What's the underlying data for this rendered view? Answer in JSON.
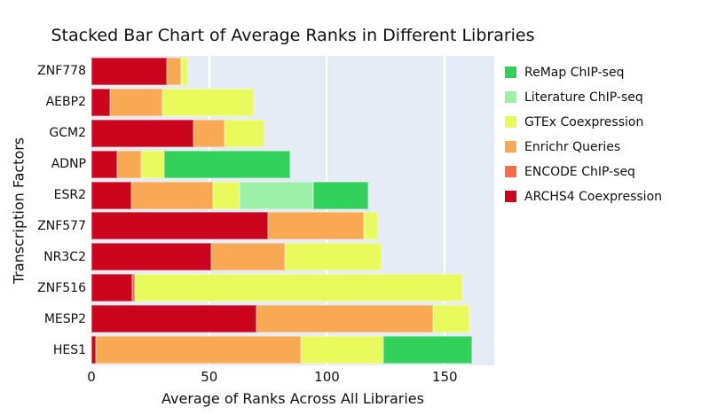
{
  "title": "Stacked Bar Chart of Average Ranks in Different Libraries",
  "x_axis": {
    "title": "Average of Ranks Across All Libraries",
    "tick_labels": [
      "0",
      "50",
      "100",
      "150"
    ],
    "tick_values": [
      0,
      50,
      100,
      150
    ],
    "max": 171
  },
  "y_axis": {
    "title": "Transcription Factors"
  },
  "plot": {
    "background_color": "#e5ecf6",
    "gridline_color": "#ffffff"
  },
  "legend": {
    "items": [
      {
        "label": "ReMap ChIP-seq",
        "color": "#31d15c"
      },
      {
        "label": "Literature ChIP-seq",
        "color": "#9df0a7"
      },
      {
        "label": "GTEx Coexpression",
        "color": "#e9fa5c"
      },
      {
        "label": "Enrichr Queries",
        "color": "#f9a953"
      },
      {
        "label": "ENCODE ChIP-seq",
        "color": "#fb6a4a"
      },
      {
        "label": "ARCHS4 Coexpression",
        "color": "#cb051d"
      }
    ]
  },
  "chart_data": {
    "type": "bar",
    "orientation": "horizontal",
    "stacked": true,
    "title": "Stacked Bar Chart of Average Ranks in Different Libraries",
    "xlabel": "Average of Ranks Across All Libraries",
    "ylabel": "Transcription Factors",
    "xlim": [
      0,
      171
    ],
    "grid": true,
    "legend_position": "top-right",
    "categories": [
      "ZNF778",
      "AEBP2",
      "GCM2",
      "ADNP",
      "ESR2",
      "ZNF577",
      "NR3C2",
      "ZNF516",
      "MESP2",
      "HES1"
    ],
    "series": [
      {
        "name": "ARCHS4 Coexpression",
        "color": "#cb051d",
        "values": [
          32,
          8,
          43.5,
          11,
          17,
          75,
          51,
          17.5,
          70,
          2
        ]
      },
      {
        "name": "ENCODE ChIP-seq",
        "color": "#fb6a4a",
        "values": [
          0,
          0,
          0,
          0,
          0,
          0,
          0,
          1,
          0,
          0
        ]
      },
      {
        "name": "Enrichr Queries",
        "color": "#f9a953",
        "values": [
          6,
          22,
          13,
          10,
          34.5,
          40.5,
          31,
          0,
          75,
          87
        ]
      },
      {
        "name": "GTEx Coexpression",
        "color": "#e9fa5c",
        "values": [
          3,
          39,
          17,
          10,
          11.5,
          6,
          41,
          139,
          15.5,
          35
        ]
      },
      {
        "name": "Literature ChIP-seq",
        "color": "#9df0a7",
        "values": [
          0,
          0,
          0,
          0,
          31,
          0,
          0,
          0,
          0,
          0
        ]
      },
      {
        "name": "ReMap ChIP-seq",
        "color": "#31d15c",
        "values": [
          0,
          0,
          0,
          53.5,
          23.5,
          0,
          0,
          0,
          0,
          37.5
        ]
      }
    ]
  }
}
